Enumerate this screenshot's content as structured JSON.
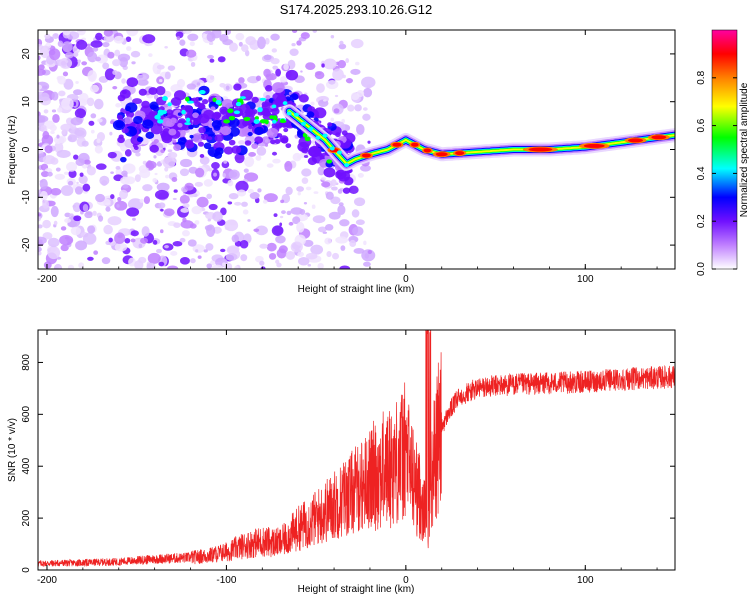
{
  "title": "S174.2025.293.10.26.G12",
  "chart_data": [
    {
      "type": "heatmap",
      "name": "spectrogram",
      "xlabel": "Height of straight line (km)",
      "ylabel": "Frequency (Hz)",
      "xlim": [
        -205,
        150
      ],
      "ylim": [
        -25,
        25
      ],
      "xticks": [
        -200,
        -100,
        0,
        100
      ],
      "yticks": [
        -20,
        -10,
        0,
        10,
        20
      ],
      "colorbar": {
        "label": "Normalized spectral amplitude",
        "range": [
          0,
          1
        ],
        "ticks": [
          0.0,
          0.2,
          0.4,
          0.6,
          0.8
        ],
        "tick_labels": [
          "0.0",
          "0.2",
          "0.4",
          "0.6",
          "0.8"
        ],
        "colors": [
          "#ffffff",
          "#c080ff",
          "#7010ff",
          "#0000ff",
          "#00ffff",
          "#00ff00",
          "#ffff00",
          "#ff8000",
          "#ff0000",
          "#ff00a0"
        ]
      },
      "ridge": {
        "x": [
          -65,
          -55,
          -45,
          -38,
          -33,
          -28,
          -20,
          -10,
          0,
          10,
          20,
          40,
          60,
          80,
          100,
          120,
          140,
          150
        ],
        "y": [
          8,
          5,
          2,
          -1,
          -3,
          -2,
          -1,
          0,
          2,
          0,
          -1,
          -0.5,
          0,
          0,
          0.5,
          1.5,
          2.5,
          3
        ]
      }
    },
    {
      "type": "line",
      "name": "snr",
      "xlabel": "Height of straight line (km)",
      "ylabel": "SNR (10 * v/v)",
      "xlim": [
        -205,
        150
      ],
      "ylim": [
        0,
        925
      ],
      "xticks": [
        -200,
        -100,
        0,
        100
      ],
      "yticks": [
        0,
        200,
        400,
        600,
        800
      ],
      "series": [
        {
          "name": "SNR",
          "color": "#ee2222",
          "x": [
            -205,
            -180,
            -160,
            -140,
            -120,
            -110,
            -100,
            -90,
            -80,
            -70,
            -60,
            -50,
            -40,
            -30,
            -20,
            -15,
            -10,
            -5,
            0,
            5,
            10,
            12,
            14,
            16,
            20,
            25,
            30,
            40,
            50,
            60,
            80,
            100,
            120,
            150
          ],
          "y": [
            25,
            28,
            32,
            42,
            48,
            55,
            70,
            95,
            110,
            105,
            160,
            200,
            250,
            300,
            350,
            380,
            390,
            420,
            460,
            330,
            250,
            130,
            300,
            450,
            550,
            620,
            670,
            700,
            710,
            715,
            720,
            725,
            735,
            745
          ]
        }
      ]
    }
  ]
}
